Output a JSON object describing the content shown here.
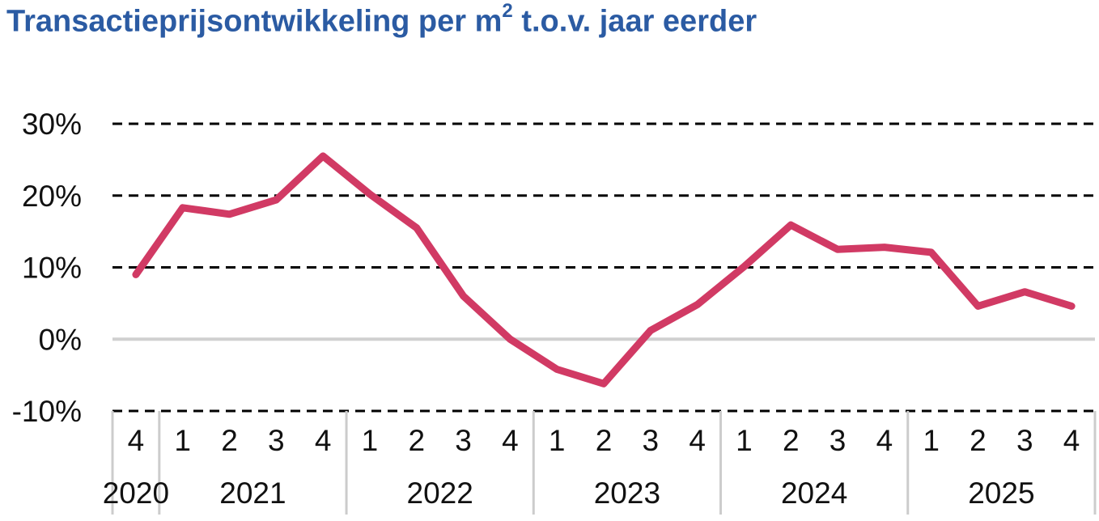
{
  "header": {
    "title": "Transactieprijsontwikkeling per m",
    "title_sup": "2",
    "title_rest": " t.o.v. jaar eerder"
  },
  "colors": {
    "title": "#2b5ba3",
    "line": "#d13a64",
    "grid": "#000000",
    "zero_line": "#d0d0d0"
  },
  "chart_data": {
    "type": "line",
    "title": "Transactieprijsontwikkeling per m² t.o.v. jaar eerder",
    "xlabel": "",
    "ylabel": "",
    "ylim": [
      -10,
      30
    ],
    "yticks": [
      30,
      20,
      10,
      0,
      -10
    ],
    "ytick_labels": [
      "30%",
      "20%",
      "10%",
      "0%",
      "-10%"
    ],
    "grid": "dashed horizontal",
    "legend": "none",
    "x": [
      "2020 Q4",
      "2021 Q1",
      "2021 Q2",
      "2021 Q3",
      "2021 Q4",
      "2022 Q1",
      "2022 Q2",
      "2022 Q3",
      "2022 Q4",
      "2023 Q1",
      "2023 Q2",
      "2023 Q3",
      "2023 Q4",
      "2024 Q1",
      "2024 Q2",
      "2024 Q3",
      "2024 Q4",
      "2025 Q1",
      "2025 Q2",
      "2025 Q3",
      "2025 Q4"
    ],
    "quarter_labels": [
      "4",
      "1",
      "2",
      "3",
      "4",
      "1",
      "2",
      "3",
      "4",
      "1",
      "2",
      "3",
      "4",
      "1",
      "2",
      "3",
      "4",
      "1",
      "2",
      "3",
      "4"
    ],
    "year_groups": [
      {
        "label": "2020",
        "quarters": 1
      },
      {
        "label": "2021",
        "quarters": 4
      },
      {
        "label": "2022",
        "quarters": 4
      },
      {
        "label": "2023",
        "quarters": 4
      },
      {
        "label": "2024",
        "quarters": 4
      },
      {
        "label": "2025",
        "quarters": 4
      }
    ],
    "series": [
      {
        "values": [
          9.0,
          18.3,
          17.4,
          19.4,
          25.5,
          20.2,
          15.5,
          6.0,
          0.0,
          -4.2,
          -6.2,
          1.2,
          4.8,
          10.1,
          15.9,
          12.5,
          12.8,
          12.1,
          4.6,
          6.6,
          4.6
        ]
      }
    ]
  }
}
